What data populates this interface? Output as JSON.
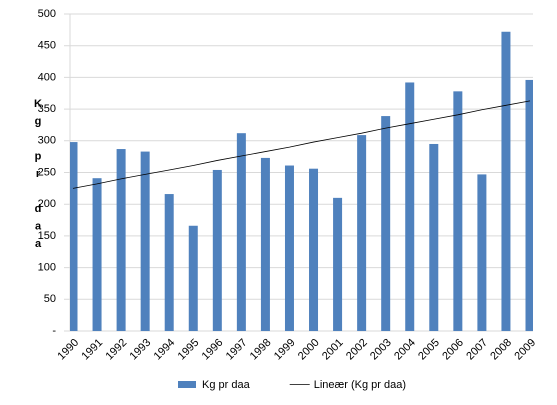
{
  "chart_data": {
    "type": "bar",
    "y_label": "Kg pr daa",
    "categories": [
      "1990",
      "1991",
      "1992",
      "1993",
      "1994",
      "1995",
      "1996",
      "1997",
      "1998",
      "1999",
      "2000",
      "2001",
      "2002",
      "2003",
      "2004",
      "2005",
      "2006",
      "2007",
      "2008",
      "2009"
    ],
    "series": [
      {
        "name": "Kg pr daa",
        "color": "#4f81bd",
        "type": "bar",
        "values": [
          298,
          241,
          287,
          283,
          216,
          166,
          254,
          312,
          273,
          261,
          256,
          210,
          309,
          339,
          392,
          295,
          378,
          247,
          472,
          396
        ]
      },
      {
        "name": "Lineær (Kg pr daa)",
        "color": "#000000",
        "type": "line",
        "values": [
          225,
          232,
          240,
          247,
          254,
          261,
          269,
          276,
          283,
          290,
          298,
          305,
          312,
          320,
          327,
          334,
          341,
          349,
          356,
          363
        ]
      }
    ],
    "ylim": [
      0,
      500
    ],
    "yticks": [
      {
        "value": 0,
        "label": "-"
      },
      50,
      100,
      150,
      200,
      250,
      300,
      350,
      400,
      450,
      500
    ],
    "grid": true
  }
}
